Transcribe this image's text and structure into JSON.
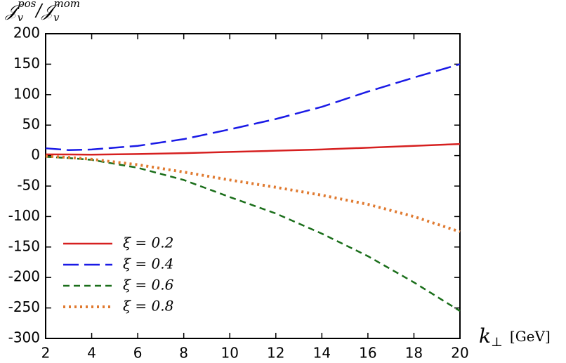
{
  "chart_data": {
    "type": "line",
    "ylabel": [
      "𝒥",
      "v",
      "pos",
      "/",
      "𝒥",
      "v",
      "mom"
    ],
    "xlabel": [
      "k",
      "⊥",
      "[GeV]"
    ],
    "x": [
      2,
      3,
      4,
      6,
      8,
      10,
      12,
      14,
      16,
      18,
      20
    ],
    "series": [
      {
        "name": "ξ = 0.2",
        "color": "#d62020",
        "dash": "solid",
        "values": [
          2,
          1.8,
          1.5,
          2.5,
          4,
          6,
          8,
          10,
          13,
          16,
          19
        ]
      },
      {
        "name": "ξ = 0.4",
        "color": "#1a1ae6",
        "dash": "long",
        "values": [
          12,
          9,
          10,
          16,
          27,
          43,
          60,
          80,
          105,
          128,
          150
        ]
      },
      {
        "name": "ξ = 0.6",
        "color": "#1a6e1a",
        "dash": "short",
        "values": [
          -2,
          -4,
          -7,
          -20,
          -40,
          -68,
          -95,
          -128,
          -165,
          -208,
          -255
        ]
      },
      {
        "name": "ξ = 0.8",
        "color": "#e07a30",
        "dash": "dot",
        "values": [
          -1,
          -3,
          -6,
          -15,
          -27,
          -40,
          -52,
          -65,
          -80,
          -100,
          -125
        ]
      }
    ],
    "xlim": [
      2,
      20
    ],
    "xticks": [
      2,
      4,
      6,
      8,
      10,
      12,
      14,
      16,
      18,
      20
    ],
    "ylim": [
      -300,
      200
    ],
    "yticks": [
      -300,
      -250,
      -200,
      -150,
      -100,
      -50,
      0,
      50,
      100,
      150,
      200
    ],
    "legend": "lower left"
  }
}
